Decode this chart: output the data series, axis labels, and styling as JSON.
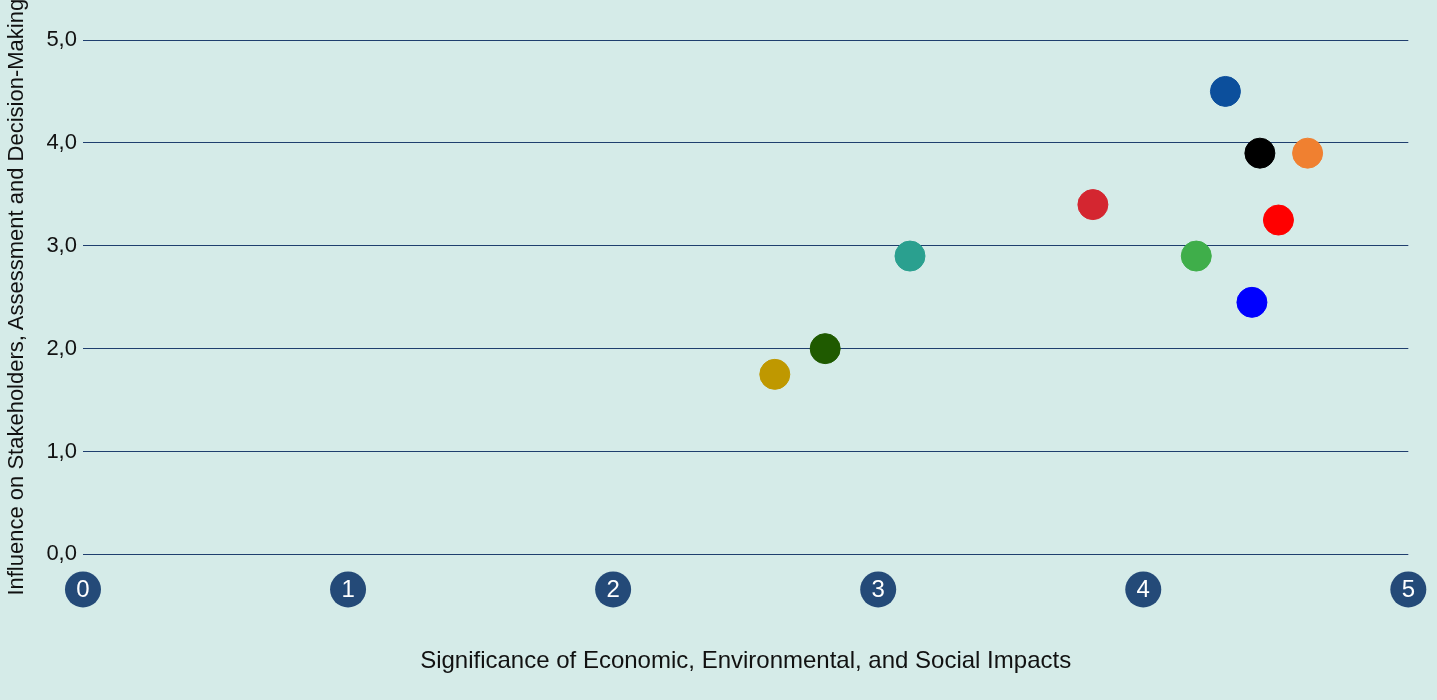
{
  "chart_data": {
    "type": "scatter",
    "xlabel": "Significance of Economic, Environmental, and Social Impacts",
    "ylabel": "Influence on Stakeholders, Assessment and Decision-Making",
    "x": [
      2.61,
      2.8,
      3.12,
      3.81,
      4.2,
      4.31,
      4.41,
      4.44,
      4.51,
      4.62
    ],
    "values": [
      1.75,
      2.0,
      2.9,
      3.4,
      2.9,
      4.5,
      2.45,
      3.9,
      3.25,
      3.9
    ],
    "colors": [
      "#bf9800",
      "#1f5a00",
      "#2aa08f",
      "#d42630",
      "#3fae4a",
      "#0c4f9c",
      "#0000ff",
      "#000000",
      "#ff0000",
      "#f08030"
    ],
    "marker": "circle",
    "grid": "y",
    "legend": false,
    "xlim": [
      0,
      5
    ],
    "xticks": [
      0,
      1,
      2,
      3,
      4,
      5
    ],
    "ylim": [
      0,
      5
    ],
    "yticks": [
      {
        "value": 0,
        "label": "0,0"
      },
      {
        "value": 1,
        "label": "1,0"
      },
      {
        "value": 2,
        "label": "2,0"
      },
      {
        "value": 3,
        "label": "3,0"
      },
      {
        "value": 4,
        "label": "4,0"
      },
      {
        "value": 5,
        "label": "5,0"
      }
    ]
  }
}
